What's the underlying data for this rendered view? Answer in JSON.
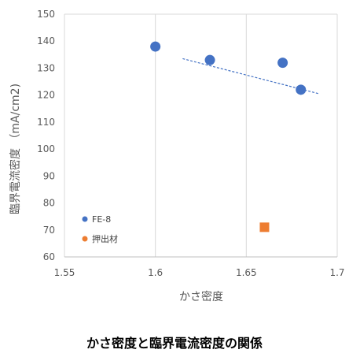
{
  "caption": "かさ密度と臨界電流密度の関係",
  "chart_data": {
    "type": "scatter",
    "title": "",
    "xlabel": "かさ密度",
    "ylabel": "臨界電流密度 （mA/cm2)",
    "xlim": [
      1.55,
      1.7
    ],
    "ylim": [
      60,
      150
    ],
    "x_ticks": [
      1.55,
      1.6,
      1.65,
      1.7
    ],
    "x_tick_labels": [
      "1.55",
      "1.6",
      "1.65",
      "1.7"
    ],
    "y_ticks": [
      60,
      70,
      80,
      90,
      100,
      110,
      120,
      130,
      140,
      150
    ],
    "y_tick_labels": [
      "60",
      "70",
      "80",
      "90",
      "100",
      "110",
      "120",
      "130",
      "140",
      "150"
    ],
    "grid": "vertical",
    "legend_position": "bottom-left inside",
    "series": [
      {
        "name": "FE-8",
        "marker": "circle",
        "color": "#4472C4",
        "points": [
          {
            "x": 1.6,
            "y": 138
          },
          {
            "x": 1.63,
            "y": 133
          },
          {
            "x": 1.67,
            "y": 132
          },
          {
            "x": 1.68,
            "y": 122
          }
        ]
      },
      {
        "name": "押出材",
        "marker": "square",
        "color": "#ED7D31",
        "points": [
          {
            "x": 1.66,
            "y": 71
          }
        ]
      }
    ],
    "trendline": {
      "series": "FE-8",
      "style": "dashed",
      "color": "#4472C4",
      "from": {
        "x": 1.615,
        "y": 133.5
      },
      "to": {
        "x": 1.69,
        "y": 120.5
      }
    }
  }
}
